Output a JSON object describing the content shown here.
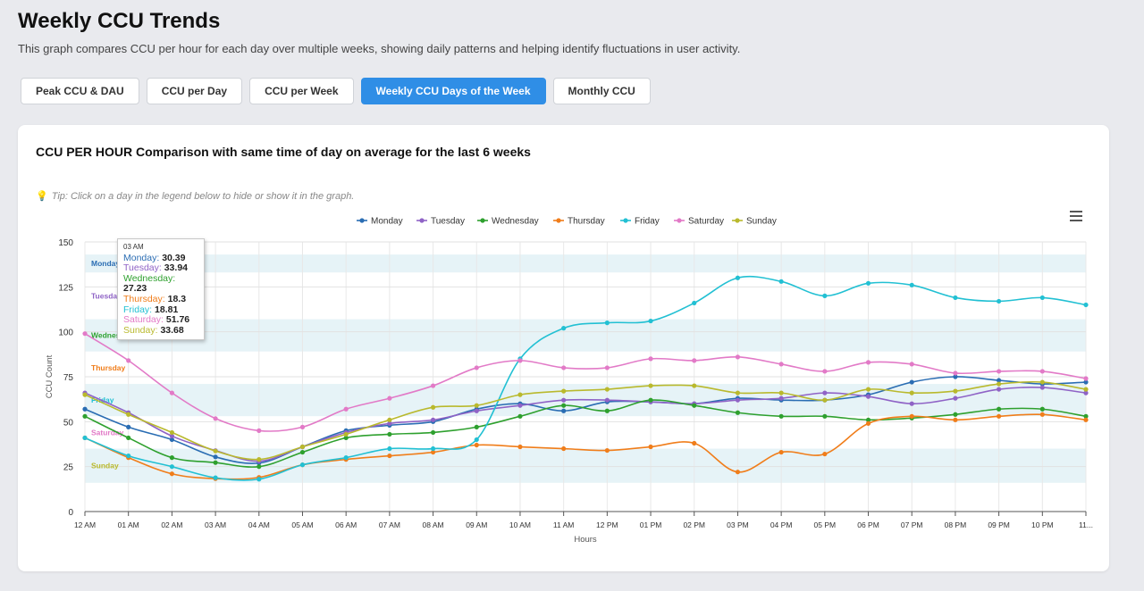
{
  "header": {
    "title": "Weekly CCU Trends",
    "description": "This graph compares CCU per hour for each day over multiple weeks, showing daily patterns and helping identify fluctuations in user activity."
  },
  "tabs": [
    {
      "label": "Peak CCU & DAU",
      "active": false
    },
    {
      "label": "CCU per Day",
      "active": false
    },
    {
      "label": "CCU per Week",
      "active": false
    },
    {
      "label": "Weekly CCU Days of the Week",
      "active": true
    },
    {
      "label": "Monthly CCU",
      "active": false
    }
  ],
  "card": {
    "title": "CCU PER HOUR Comparison with same time of day on average for the last 6 weeks",
    "tip": "Tip: Click on a day in the legend below to hide or show it in the graph.",
    "menu_icon": "hamburger-menu-icon"
  },
  "colors": {
    "accent": "#2f8ee6",
    "band": "#e6f3f7"
  },
  "chart_data": {
    "type": "line",
    "xlabel": "Hours",
    "ylabel": "CCU Count",
    "ylim": [
      0,
      150
    ],
    "yticks": [
      0,
      25,
      50,
      75,
      100,
      125,
      150
    ],
    "grid": true,
    "legend": "top-center",
    "categories": [
      "12 AM",
      "01 AM",
      "02 AM",
      "03 AM",
      "04 AM",
      "05 AM",
      "06 AM",
      "07 AM",
      "08 AM",
      "09 AM",
      "10 AM",
      "11 AM",
      "12 PM",
      "01 PM",
      "02 PM",
      "03 PM",
      "04 PM",
      "05 PM",
      "06 PM",
      "07 PM",
      "08 PM",
      "09 PM",
      "10 PM",
      "11..."
    ],
    "series": [
      {
        "name": "Monday",
        "color": "#2a6db3",
        "values": [
          57,
          47,
          40,
          30.39,
          27,
          36,
          45,
          48,
          50,
          57,
          60,
          56,
          61,
          61,
          60,
          63,
          62,
          62,
          65,
          72,
          75,
          73,
          71,
          72
        ]
      },
      {
        "name": "Tuesday",
        "color": "#8f63c6",
        "values": [
          66,
          55,
          42,
          33.94,
          28,
          36,
          44,
          49,
          51,
          56,
          59,
          62,
          62,
          61,
          60,
          62,
          63,
          66,
          64,
          60,
          63,
          68,
          69,
          66
        ]
      },
      {
        "name": "Wednesday",
        "color": "#2ea02e",
        "values": [
          53,
          41,
          30,
          27.23,
          25,
          33,
          41,
          43,
          44,
          47,
          53,
          59,
          56,
          62,
          59,
          55,
          53,
          53,
          51,
          52,
          54,
          57,
          57,
          53
        ]
      },
      {
        "name": "Thursday",
        "color": "#f07d1a",
        "values": [
          41,
          30,
          21,
          18.3,
          19,
          26,
          29,
          31,
          33,
          37,
          36,
          35,
          34,
          36,
          38,
          22,
          33,
          32,
          49,
          53,
          51,
          53,
          54,
          51
        ]
      },
      {
        "name": "Friday",
        "color": "#22c0d3",
        "values": [
          41,
          31,
          25,
          18.81,
          18,
          26,
          30,
          35,
          35,
          40,
          85,
          102,
          105,
          106,
          116,
          130,
          128,
          120,
          127,
          126,
          119,
          117,
          119,
          115
        ]
      },
      {
        "name": "Saturday",
        "color": "#e27ac7",
        "values": [
          99,
          84,
          66,
          51.76,
          45,
          47,
          57,
          63,
          70,
          80,
          84,
          80,
          80,
          85,
          84,
          86,
          82,
          78,
          83,
          82,
          77,
          78,
          78,
          74
        ]
      },
      {
        "name": "Sunday",
        "color": "#b9b92d",
        "values": [
          65,
          54,
          44,
          33.68,
          29,
          36,
          43,
          51,
          58,
          59,
          65,
          67,
          68,
          70,
          70,
          66,
          66,
          62,
          68,
          66,
          67,
          71,
          72,
          68
        ]
      }
    ],
    "tooltip": {
      "time": "03 AM",
      "rows": [
        {
          "name": "Monday",
          "value": "30.39"
        },
        {
          "name": "Tuesday",
          "value": "33.94"
        },
        {
          "name": "Wednesday",
          "value": "27.23"
        },
        {
          "name": "Thursday",
          "value": "18.3"
        },
        {
          "name": "Friday",
          "value": "18.81"
        },
        {
          "name": "Saturday",
          "value": "51.76"
        },
        {
          "name": "Sunday",
          "value": "33.68"
        }
      ]
    },
    "bands": [
      {
        "name": "Monday",
        "from": 133,
        "to": 143
      },
      {
        "name": "Tuesday",
        "from": 115,
        "to": 125
      },
      {
        "name": "Wednesday",
        "from": 89,
        "to": 107
      },
      {
        "name": "Thursday",
        "from": 71,
        "to": 89
      },
      {
        "name": "Friday",
        "from": 53,
        "to": 71
      },
      {
        "name": "Saturday",
        "from": 35,
        "to": 53
      },
      {
        "name": "Sunday",
        "from": 16,
        "to": 35
      }
    ]
  }
}
